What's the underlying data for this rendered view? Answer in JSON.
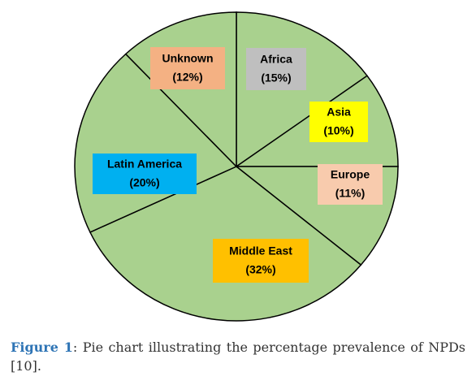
{
  "chart_data": {
    "type": "pie",
    "categories": [
      "Africa",
      "Asia",
      "Europe",
      "Middle East",
      "Latin America",
      "Unknown"
    ],
    "values": [
      15,
      10,
      11,
      32,
      20,
      12
    ],
    "value_labels": [
      "(15%)",
      "(10%)",
      "(11%)",
      "(32%)",
      "(20%)",
      "(12%)"
    ],
    "color": "#a9d18e",
    "label_colors": [
      "#bfbfbf",
      "#ffff00",
      "#f8cbad",
      "#ffc000",
      "#00b0f0",
      "#f4b183"
    ]
  },
  "caption": {
    "label": "Figure 1",
    "text": ": Pie chart illustrating the percentage prevalence of NPDs [10]."
  }
}
